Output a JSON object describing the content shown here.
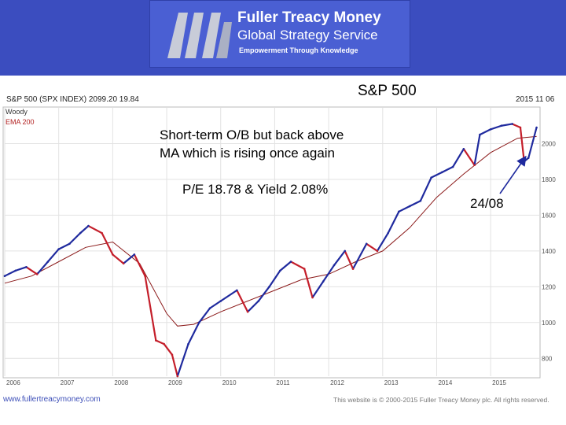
{
  "banner": {
    "brand_name": "Fuller Treacy Money",
    "brand_sub": "Global Strategy Service",
    "tagline": "Empowerment Through Knowledge",
    "colors": {
      "background": "#3b4dbf",
      "box": "#4a5fd3",
      "logo": "#c8ccd8"
    }
  },
  "slide_title": "S&P 500",
  "chart_header": {
    "ticker_line": "S&P 500 (SPX INDEX) 2099.20 19.84",
    "date": "2015 11 06"
  },
  "legend": {
    "woody": "Woody",
    "ema": "EMA 200"
  },
  "annotations": {
    "line1": "Short-term O/B but back above",
    "line2": "MA which is rising once again",
    "line3": "P/E 18.78 & Yield 2.08%",
    "arrow_label": "24/08"
  },
  "footer": {
    "left": "www.fullertreacymoney.com",
    "right": "This website is © 2000-2015 Fuller Treacy Money plc. All rights reserved."
  },
  "chart_data": {
    "type": "line",
    "title": "S&P 500",
    "xlim": [
      2006.0,
      2015.9
    ],
    "ylim": [
      700,
      2200
    ],
    "yticks": [
      800,
      1000,
      1200,
      1400,
      1600,
      1800,
      2000
    ],
    "xticks": [
      {
        "label": "2006",
        "x": 2006.0
      },
      {
        "label": "2007",
        "x": 2007.0
      },
      {
        "label": "2008",
        "x": 2008.0
      },
      {
        "label": "2009",
        "x": 2009.0
      },
      {
        "label": "2010",
        "x": 2010.0
      },
      {
        "label": "2011",
        "x": 2011.0
      },
      {
        "label": "2012",
        "x": 2012.0
      },
      {
        "label": "2013",
        "x": 2013.0
      },
      {
        "label": "2014",
        "x": 2014.0
      },
      {
        "label": "2015",
        "x": 2015.0
      }
    ],
    "grid": true,
    "colors": {
      "price_up": "#1f2a9e",
      "price_down": "#c41e2a",
      "ema": "#8b1a1a"
    },
    "series": [
      {
        "name": "Woody",
        "x": [
          2006.0,
          2006.2,
          2006.4,
          2006.6,
          2006.8,
          2007.0,
          2007.2,
          2007.4,
          2007.55,
          2007.8,
          2008.0,
          2008.2,
          2008.4,
          2008.6,
          2008.8,
          2008.95,
          2009.1,
          2009.2,
          2009.4,
          2009.6,
          2009.8,
          2010.0,
          2010.3,
          2010.5,
          2010.7,
          2010.9,
          2011.1,
          2011.3,
          2011.55,
          2011.7,
          2011.9,
          2012.1,
          2012.3,
          2012.45,
          2012.7,
          2012.9,
          2013.1,
          2013.3,
          2013.5,
          2013.7,
          2013.9,
          2014.1,
          2014.3,
          2014.5,
          2014.7,
          2014.8,
          2015.0,
          2015.2,
          2015.4,
          2015.55,
          2015.62,
          2015.7,
          2015.85
        ],
        "y": [
          1260,
          1290,
          1310,
          1270,
          1340,
          1410,
          1440,
          1500,
          1540,
          1500,
          1380,
          1330,
          1380,
          1260,
          900,
          880,
          820,
          700,
          880,
          1000,
          1080,
          1120,
          1180,
          1060,
          1120,
          1200,
          1290,
          1340,
          1300,
          1140,
          1230,
          1320,
          1400,
          1300,
          1440,
          1400,
          1500,
          1620,
          1650,
          1680,
          1810,
          1840,
          1870,
          1970,
          1880,
          2050,
          2080,
          2100,
          2110,
          2090,
          1900,
          1920,
          2090
        ]
      },
      {
        "name": "EMA 200",
        "x": [
          2006.0,
          2006.5,
          2007.0,
          2007.5,
          2008.0,
          2008.5,
          2009.0,
          2009.2,
          2009.5,
          2010.0,
          2010.5,
          2011.0,
          2011.5,
          2012.0,
          2012.5,
          2013.0,
          2013.5,
          2014.0,
          2014.5,
          2015.0,
          2015.5,
          2015.85
        ],
        "y": [
          1220,
          1260,
          1340,
          1420,
          1450,
          1330,
          1050,
          980,
          990,
          1060,
          1120,
          1180,
          1240,
          1270,
          1340,
          1400,
          1530,
          1700,
          1830,
          1950,
          2030,
          2040
        ]
      }
    ]
  }
}
